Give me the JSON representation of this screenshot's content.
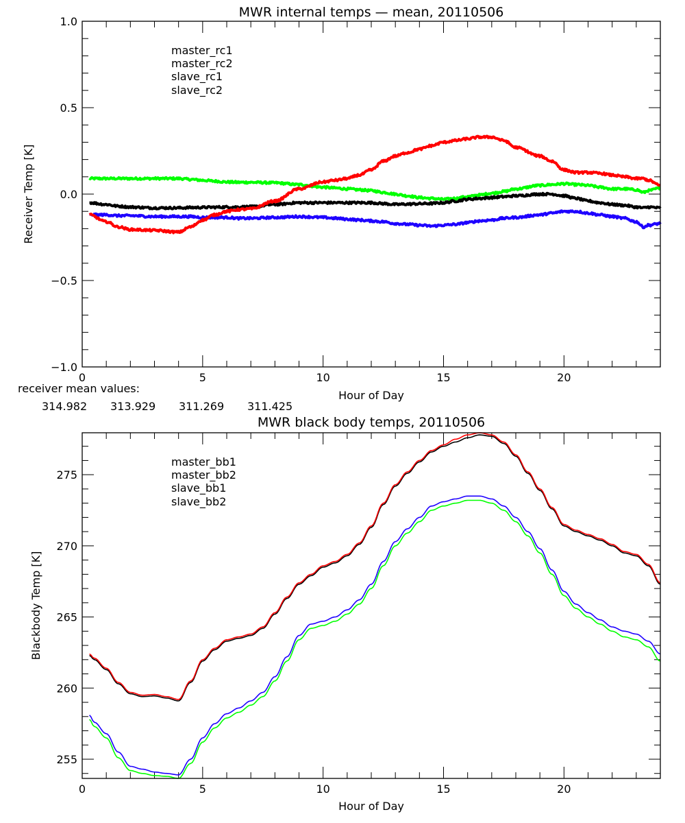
{
  "colors": {
    "black": "#000000",
    "red": "#ff0000",
    "blue": "#1e00ff",
    "green": "#00ff00"
  },
  "receiver_mean": {
    "label": "receiver mean values:",
    "values": [
      "314.982",
      "313.929",
      "311.269",
      "311.425"
    ]
  },
  "chart_data": [
    {
      "type": "line",
      "title": "MWR internal temps — mean, 20110506",
      "xlabel": "Hour of Day",
      "ylabel": "Receiver Temp [K]",
      "xlim": [
        0,
        24
      ],
      "ylim": [
        -1.0,
        1.0
      ],
      "xticks": [
        0,
        5,
        10,
        15,
        20
      ],
      "xtick_labels": [
        "0",
        "5",
        "10",
        "15",
        "20"
      ],
      "yticks": [
        -1.0,
        -0.5,
        0.0,
        0.5,
        1.0
      ],
      "ytick_labels": [
        "−1.0",
        "−0.5",
        "0.0",
        "0.5",
        "1.0"
      ],
      "x_minor_step": 1,
      "y_minor_step": 0.1,
      "grid": false,
      "legend_position": "top-left",
      "noisy": true,
      "x": [
        0.3,
        1,
        1.5,
        2,
        3,
        4,
        4.5,
        5,
        5.5,
        6,
        6.5,
        7,
        8,
        9,
        10,
        10.5,
        11,
        11.5,
        12,
        12.5,
        13,
        13.5,
        14,
        14.5,
        15,
        15.5,
        16,
        16.5,
        17,
        17.5,
        18,
        19,
        19.5,
        20,
        20.5,
        21,
        21.5,
        22,
        22.5,
        23,
        23.3,
        23.5,
        24
      ],
      "series": [
        {
          "name": "master_rc1",
          "color": "black",
          "values": [
            -0.05,
            -0.06,
            -0.07,
            -0.075,
            -0.08,
            -0.08,
            -0.078,
            -0.077,
            -0.076,
            -0.075,
            -0.075,
            -0.073,
            -0.06,
            -0.05,
            -0.05,
            -0.05,
            -0.05,
            -0.05,
            -0.05,
            -0.055,
            -0.06,
            -0.058,
            -0.056,
            -0.054,
            -0.05,
            -0.04,
            -0.03,
            -0.025,
            -0.02,
            -0.015,
            -0.01,
            0.0,
            0.0,
            -0.01,
            -0.025,
            -0.04,
            -0.05,
            -0.06,
            -0.065,
            -0.075,
            -0.08,
            -0.075,
            -0.08
          ]
        },
        {
          "name": "master_rc2",
          "color": "red",
          "values": [
            -0.12,
            -0.16,
            -0.19,
            -0.205,
            -0.21,
            -0.22,
            -0.19,
            -0.15,
            -0.12,
            -0.1,
            -0.09,
            -0.085,
            -0.04,
            0.03,
            0.07,
            0.08,
            0.09,
            0.11,
            0.14,
            0.19,
            0.22,
            0.24,
            0.26,
            0.28,
            0.3,
            0.31,
            0.32,
            0.33,
            0.33,
            0.31,
            0.27,
            0.22,
            0.19,
            0.14,
            0.125,
            0.125,
            0.12,
            0.11,
            0.1,
            0.09,
            0.09,
            0.08,
            0.05
          ]
        },
        {
          "name": "slave_rc1",
          "color": "blue",
          "values": [
            -0.12,
            -0.12,
            -0.125,
            -0.125,
            -0.13,
            -0.13,
            -0.13,
            -0.135,
            -0.135,
            -0.135,
            -0.14,
            -0.14,
            -0.135,
            -0.13,
            -0.135,
            -0.14,
            -0.145,
            -0.15,
            -0.155,
            -0.16,
            -0.17,
            -0.175,
            -0.18,
            -0.185,
            -0.18,
            -0.175,
            -0.165,
            -0.155,
            -0.15,
            -0.14,
            -0.135,
            -0.12,
            -0.11,
            -0.1,
            -0.1,
            -0.11,
            -0.12,
            -0.13,
            -0.14,
            -0.16,
            -0.19,
            -0.18,
            -0.17
          ]
        },
        {
          "name": "slave_rc2",
          "color": "green",
          "values": [
            0.09,
            0.09,
            0.09,
            0.09,
            0.09,
            0.09,
            0.085,
            0.08,
            0.075,
            0.07,
            0.068,
            0.068,
            0.065,
            0.055,
            0.04,
            0.035,
            0.03,
            0.025,
            0.02,
            0.01,
            0.0,
            -0.01,
            -0.02,
            -0.025,
            -0.03,
            -0.025,
            -0.015,
            -0.005,
            0.005,
            0.015,
            0.03,
            0.05,
            0.055,
            0.06,
            0.055,
            0.05,
            0.04,
            0.03,
            0.03,
            0.025,
            0.01,
            0.02,
            0.035
          ]
        }
      ]
    },
    {
      "type": "line",
      "title": "MWR black body temps, 20110506",
      "xlabel": "Hour of Day",
      "ylabel": "Blackbody Temp [K]",
      "xlim": [
        0,
        24
      ],
      "ylim": [
        253.65,
        277.95
      ],
      "xticks": [
        0,
        5,
        10,
        15,
        20
      ],
      "xtick_labels": [
        "0",
        "5",
        "10",
        "15",
        "20"
      ],
      "yticks": [
        255,
        260,
        265,
        270,
        275
      ],
      "ytick_labels": [
        "255",
        "260",
        "265",
        "270",
        "275"
      ],
      "x_minor_step": 1,
      "y_minor_step": 1,
      "grid": false,
      "legend_position": "top-left",
      "noisy": false,
      "x": [
        0.3,
        0.5,
        1,
        1.5,
        2,
        2.5,
        3,
        3.5,
        4,
        4.5,
        5,
        5.5,
        6,
        6.5,
        7,
        7.5,
        8,
        8.5,
        9,
        9.5,
        10,
        10.5,
        11,
        11.5,
        12,
        12.5,
        13,
        13.5,
        14,
        14.5,
        15,
        15.5,
        16,
        16.5,
        17,
        17.5,
        18,
        18.5,
        19,
        19.5,
        20,
        20.5,
        21,
        21.5,
        22,
        22.5,
        23,
        23.5,
        24
      ],
      "series": [
        {
          "name": "master_bb1",
          "color": "black",
          "values": [
            262.3,
            262.0,
            261.3,
            260.3,
            259.6,
            259.4,
            259.45,
            259.3,
            259.1,
            260.4,
            261.9,
            262.7,
            263.3,
            263.5,
            263.7,
            264.2,
            265.2,
            266.3,
            267.3,
            267.9,
            268.5,
            268.8,
            269.3,
            270.1,
            271.3,
            272.9,
            274.2,
            275.1,
            275.9,
            276.6,
            277.0,
            277.3,
            277.6,
            277.8,
            277.7,
            277.2,
            276.3,
            275.1,
            273.9,
            272.6,
            271.4,
            271.0,
            270.7,
            270.4,
            270.0,
            269.5,
            269.3,
            268.6,
            267.3
          ]
        },
        {
          "name": "master_bb2",
          "color": "red",
          "values": [
            262.4,
            262.1,
            261.4,
            260.4,
            259.7,
            259.5,
            259.55,
            259.4,
            259.2,
            260.5,
            262.0,
            262.8,
            263.4,
            263.6,
            263.8,
            264.3,
            265.3,
            266.4,
            267.4,
            268.0,
            268.6,
            268.9,
            269.4,
            270.2,
            271.4,
            273.0,
            274.3,
            275.2,
            276.0,
            276.7,
            277.1,
            277.5,
            277.8,
            277.95,
            277.8,
            277.3,
            276.4,
            275.2,
            274.0,
            272.7,
            271.5,
            271.1,
            270.8,
            270.5,
            270.1,
            269.6,
            269.4,
            268.7,
            267.4
          ]
        },
        {
          "name": "slave_bb1",
          "color": "blue",
          "values": [
            258.1,
            257.6,
            256.8,
            255.5,
            254.5,
            254.3,
            254.1,
            254.0,
            253.9,
            255.0,
            256.5,
            257.5,
            258.2,
            258.6,
            259.1,
            259.7,
            260.8,
            262.2,
            263.7,
            264.5,
            264.7,
            265.0,
            265.5,
            266.2,
            267.3,
            268.9,
            270.3,
            271.2,
            272.0,
            272.8,
            273.1,
            273.3,
            273.5,
            273.5,
            273.3,
            272.8,
            272.0,
            271.0,
            269.8,
            268.3,
            266.8,
            265.9,
            265.3,
            264.8,
            264.3,
            264.0,
            263.8,
            263.3,
            262.4
          ]
        },
        {
          "name": "slave_bb2",
          "color": "green",
          "values": [
            257.8,
            257.3,
            256.5,
            255.1,
            254.2,
            254.0,
            253.85,
            253.8,
            253.65,
            254.7,
            256.2,
            257.2,
            257.9,
            258.3,
            258.8,
            259.4,
            260.5,
            261.9,
            263.4,
            264.2,
            264.4,
            264.7,
            265.2,
            265.9,
            267.0,
            268.6,
            270.0,
            270.9,
            271.7,
            272.5,
            272.8,
            273.0,
            273.2,
            273.2,
            273.0,
            272.5,
            271.7,
            270.7,
            269.5,
            268.0,
            266.5,
            265.6,
            265.0,
            264.5,
            264.0,
            263.6,
            263.4,
            262.9,
            261.9
          ]
        }
      ]
    }
  ]
}
